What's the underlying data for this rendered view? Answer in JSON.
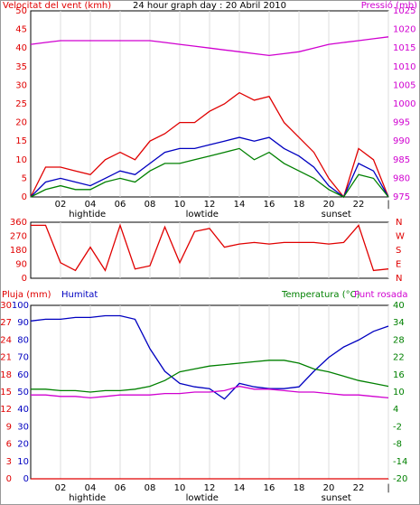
{
  "chart_data": [
    {
      "type": "line",
      "title": "24 hour graph day : 20 Abril 2010",
      "ylabel": "Velocitat del vent (kmh)",
      "ylabel_color": "#e00000",
      "y2label": "Pressió (mb)",
      "y2label_color": "#d000d0",
      "x": [
        0,
        1,
        2,
        3,
        4,
        5,
        6,
        7,
        8,
        9,
        10,
        11,
        12,
        13,
        14,
        15,
        16,
        17,
        18,
        19,
        20,
        21,
        22,
        23,
        24
      ],
      "xlim": [
        0,
        24
      ],
      "xticks": [
        {
          "value": 2,
          "label": "02"
        },
        {
          "value": 4,
          "label": "04"
        },
        {
          "value": 6,
          "label": "06"
        },
        {
          "value": 8,
          "label": "08"
        },
        10,
        12,
        14,
        16,
        18,
        20,
        22,
        {
          "value": 24,
          "label": "|"
        }
      ],
      "annotations": [
        {
          "text": "hightide",
          "x": 3.8
        },
        {
          "text": "lowtide",
          "x": 11.5
        },
        {
          "text": "sunset",
          "x": 20.5
        }
      ],
      "ylim": [
        0,
        50
      ],
      "yticks": [
        0,
        5,
        10,
        15,
        20,
        25,
        30,
        35,
        40,
        45,
        50
      ],
      "ytick_color": "#e00000",
      "y2lim": [
        975,
        1025
      ],
      "y2ticks": [
        975,
        980,
        985,
        990,
        995,
        1000,
        1005,
        1010,
        1015,
        1020,
        1025
      ],
      "y2tick_color": "#d000d0",
      "grid": true,
      "series": [
        {
          "color": "#e00000",
          "values": [
            0,
            8,
            8,
            7,
            6,
            10,
            12,
            10,
            15,
            17,
            20,
            20,
            23,
            25,
            28,
            26,
            27,
            20,
            16,
            12,
            5,
            0,
            13,
            10,
            0
          ]
        },
        {
          "color": "#0000c0",
          "values": [
            0,
            4,
            5,
            4,
            3,
            5,
            7,
            6,
            9,
            12,
            13,
            13,
            14,
            15,
            16,
            15,
            16,
            13,
            11,
            8,
            3,
            0,
            9,
            7,
            0
          ]
        },
        {
          "color": "#008000",
          "values": [
            0,
            2,
            3,
            2,
            2,
            4,
            5,
            4,
            7,
            9,
            9,
            10,
            11,
            12,
            13,
            10,
            12,
            9,
            7,
            5,
            2,
            0,
            6,
            5,
            0
          ]
        },
        {
          "color": "#d000d0",
          "axis": "y2",
          "values": [
            1016,
            1016.5,
            1017,
            1017,
            1017,
            1017,
            1017,
            1017,
            1017,
            1016.5,
            1016,
            1015.5,
            1015,
            1014.5,
            1014,
            1013.5,
            1013,
            1013.5,
            1014,
            1015,
            1016,
            1016.5,
            1017,
            1017.5,
            1018
          ]
        }
      ]
    },
    {
      "type": "line",
      "x": [
        0,
        1,
        2,
        3,
        4,
        5,
        6,
        7,
        8,
        9,
        10,
        11,
        12,
        13,
        14,
        15,
        16,
        17,
        18,
        19,
        20,
        21,
        22,
        23,
        24
      ],
      "xlim": [
        0,
        24
      ],
      "xticks": [
        2,
        4,
        6,
        8,
        10,
        12,
        14,
        16,
        18,
        20,
        22,
        24
      ],
      "ylim": [
        0,
        360
      ],
      "yticks": [
        0,
        90,
        180,
        270,
        360
      ],
      "ytick_color": "#e00000",
      "y2lim": [
        0,
        360
      ],
      "y2ticks": [
        {
          "value": 0,
          "label": "N"
        },
        {
          "value": 90,
          "label": "E"
        },
        {
          "value": 180,
          "label": "S"
        },
        {
          "value": 270,
          "label": "W"
        },
        {
          "value": 360,
          "label": "N"
        }
      ],
      "y2tick_color": "#e00000",
      "grid": true,
      "series": [
        {
          "color": "#e00000",
          "values": [
            340,
            340,
            100,
            50,
            200,
            50,
            340,
            60,
            80,
            330,
            100,
            300,
            320,
            200,
            220,
            230,
            220,
            230,
            230,
            230,
            220,
            230,
            340,
            50,
            60
          ]
        }
      ]
    },
    {
      "type": "line",
      "x": [
        0,
        1,
        2,
        3,
        4,
        5,
        6,
        7,
        8,
        9,
        10,
        11,
        12,
        13,
        14,
        15,
        16,
        17,
        18,
        19,
        20,
        21,
        22,
        23,
        24
      ],
      "xlim": [
        0,
        24
      ],
      "xticks": [
        {
          "value": 2,
          "label": "02"
        },
        {
          "value": 4,
          "label": "04"
        },
        {
          "value": 6,
          "label": "06"
        },
        {
          "value": 8,
          "label": "08"
        },
        10,
        12,
        14,
        16,
        18,
        20,
        22,
        {
          "value": 24,
          "label": "|"
        }
      ],
      "annotations": [
        {
          "text": "hightide",
          "x": 3.8
        },
        {
          "text": "lowtide",
          "x": 11.5
        },
        {
          "text": "sunset",
          "x": 20.5
        }
      ],
      "ylim": [
        0,
        100
      ],
      "yticks": [
        0,
        10,
        20,
        30,
        40,
        50,
        60,
        70,
        80,
        90,
        100
      ],
      "ytick_color": "#0000c0",
      "y3lim": [
        0,
        30
      ],
      "y3ticks": [
        0,
        3,
        6,
        9,
        12,
        15,
        18,
        21,
        24,
        27,
        30
      ],
      "y3tick_color": "#e00000",
      "y2lim": [
        -20,
        40
      ],
      "y2ticks": [
        -20,
        -14,
        -8,
        -2,
        4,
        10,
        16,
        22,
        28,
        34,
        40
      ],
      "y2tick_color": "#008000",
      "grid": true,
      "series": [
        {
          "name": "Pluja (mm)",
          "color": "#e00000",
          "axis": "y3",
          "values": [
            0,
            0,
            0,
            0,
            0,
            0,
            0,
            0,
            0,
            0,
            0,
            0,
            0,
            0,
            0,
            0,
            0,
            0,
            0,
            0,
            0,
            0,
            0,
            0,
            0
          ]
        },
        {
          "name": "Humitat",
          "color": "#0000c0",
          "values": [
            91,
            92,
            92,
            93,
            93,
            94,
            94,
            92,
            75,
            62,
            55,
            53,
            52,
            46,
            55,
            53,
            52,
            52,
            53,
            62,
            70,
            76,
            80,
            85,
            88
          ]
        },
        {
          "name": "Temperatura (°C)",
          "color": "#008000",
          "axis": "y2",
          "values": [
            11,
            11,
            10.5,
            10.5,
            10,
            10.5,
            10.5,
            11,
            12,
            14,
            17,
            18,
            19,
            19.5,
            20,
            20.5,
            21,
            21,
            20,
            18,
            17,
            15.5,
            14,
            13,
            12
          ]
        },
        {
          "name": "Punt rosada",
          "color": "#d000d0",
          "axis": "y2",
          "values": [
            9,
            9,
            8.5,
            8.5,
            8,
            8.5,
            9,
            9,
            9,
            9.5,
            9.5,
            10,
            10,
            10.5,
            12,
            11,
            11,
            10.5,
            10,
            10,
            9.5,
            9,
            9,
            8.5,
            8
          ]
        }
      ]
    }
  ]
}
